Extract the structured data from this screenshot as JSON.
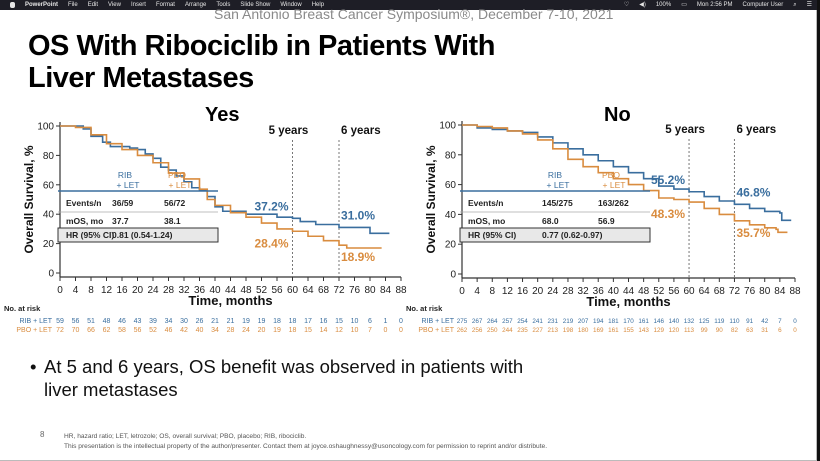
{
  "menubar": {
    "app": "PowerPoint",
    "menus": [
      "File",
      "Edit",
      "View",
      "Insert",
      "Format",
      "Arrange",
      "Tools",
      "Slide Show",
      "Window",
      "Help"
    ],
    "status": [
      "100%",
      "Mon 2:56 PM",
      "Computer User"
    ],
    "icons": [
      "apple-icon",
      "wifi-icon",
      "volume-icon",
      "battery-icon",
      "search-icon",
      "list-icon"
    ]
  },
  "slide": {
    "conference": "San Antonio Breast Cancer Symposium®, December 7-10, 2021",
    "title_line1": "OS With Ribociclib in Patients With",
    "title_line2": "Liver Metastases",
    "bullet_line1": "At 5 and 6 years, OS benefit was observed in patients with",
    "bullet_line2": "liver metastases",
    "slide_number": "8",
    "footnote1": "HR, hazard ratio; LET, letrozole; OS, overall survival; PBO, placebo; RIB, ribociclib.",
    "footnote2": "This presentation is the intellectual property of the author/presenter. Contact them at joyce.oshaughnessy@usoncology.com for permission to reprint and/or distribute."
  },
  "colors": {
    "rib": "#3a6e9e",
    "pbo": "#d98c3f",
    "axis": "#333333"
  },
  "chart_data": [
    {
      "type": "line",
      "panel": "Yes",
      "title": "Yes",
      "xlabel": "Time, months",
      "ylabel": "Overall Survival, %",
      "xlim": [
        0,
        88
      ],
      "ylim": [
        0,
        100
      ],
      "xticks": [
        0,
        4,
        8,
        12,
        16,
        20,
        24,
        28,
        32,
        36,
        40,
        44,
        48,
        52,
        56,
        60,
        64,
        68,
        72,
        76,
        80,
        84,
        88
      ],
      "yticks": [
        0,
        20,
        40,
        60,
        80,
        100
      ],
      "reference_lines": [
        {
          "x": 60,
          "label": "5 years"
        },
        {
          "x": 72,
          "label": "6 years"
        }
      ],
      "series": [
        {
          "name": "RIB + LET",
          "key": "rib",
          "points": [
            [
              0,
              100
            ],
            [
              6,
              98
            ],
            [
              8,
              93
            ],
            [
              11,
              89
            ],
            [
              13,
              86
            ],
            [
              18,
              85
            ],
            [
              20,
              84
            ],
            [
              22,
              81
            ],
            [
              24,
              78
            ],
            [
              26,
              72
            ],
            [
              28,
              70
            ],
            [
              30,
              66
            ],
            [
              32,
              62
            ],
            [
              34,
              58
            ],
            [
              36,
              56
            ],
            [
              38,
              52
            ],
            [
              40,
              45
            ],
            [
              42,
              42
            ],
            [
              48,
              40
            ],
            [
              56,
              38
            ],
            [
              60,
              37.2
            ],
            [
              62,
              35
            ],
            [
              66,
              33
            ],
            [
              72,
              31
            ],
            [
              78,
              31
            ],
            [
              80,
              27
            ],
            [
              85,
              27
            ]
          ]
        },
        {
          "name": "PBO + LET",
          "key": "pbo",
          "points": [
            [
              0,
              100
            ],
            [
              4,
              99
            ],
            [
              8,
              94
            ],
            [
              12,
              88
            ],
            [
              16,
              84
            ],
            [
              20,
              80
            ],
            [
              24,
              75
            ],
            [
              28,
              68
            ],
            [
              32,
              64
            ],
            [
              36,
              57
            ],
            [
              38,
              50
            ],
            [
              40,
              46
            ],
            [
              44,
              41
            ],
            [
              48,
              38
            ],
            [
              52,
              34
            ],
            [
              56,
              30
            ],
            [
              60,
              28.4
            ],
            [
              64,
              25
            ],
            [
              68,
              22
            ],
            [
              72,
              18.9
            ],
            [
              74,
              17
            ],
            [
              83,
              17
            ]
          ]
        }
      ],
      "annotations": [
        {
          "text": "37.2%",
          "series": "rib",
          "x": 60,
          "y": 37.2
        },
        {
          "text": "31.0%",
          "series": "rib",
          "x": 72,
          "y": 31.0
        },
        {
          "text": "28.4%",
          "series": "pbo",
          "x": 60,
          "y": 28.4
        },
        {
          "text": "18.9%",
          "series": "pbo",
          "x": 72,
          "y": 18.9
        }
      ],
      "inset_table": {
        "headers": [
          "",
          "RIB\n+ LET",
          "PBO\n+ LET"
        ],
        "rows": [
          [
            "Events/n",
            "36/59",
            "56/72"
          ],
          [
            "mOS, mo",
            "37.7",
            "38.1"
          ]
        ],
        "hr_label": "HR (95% CI)",
        "hr_value": "0.81 (0.54-1.24)"
      },
      "at_risk": {
        "label": "No. at risk",
        "rib": [
          "59",
          "56",
          "51",
          "48",
          "46",
          "43",
          "39",
          "34",
          "30",
          "26",
          "21",
          "21",
          "19",
          "19",
          "18",
          "18",
          "17",
          "16",
          "15",
          "10",
          "6",
          "1",
          "0"
        ],
        "pbo": [
          "72",
          "70",
          "66",
          "62",
          "58",
          "56",
          "52",
          "46",
          "42",
          "40",
          "34",
          "28",
          "24",
          "20",
          "19",
          "18",
          "15",
          "14",
          "12",
          "10",
          "7",
          "0",
          "0"
        ]
      }
    },
    {
      "type": "line",
      "panel": "No",
      "title": "No",
      "xlabel": "Time, months",
      "ylabel": "Overall Survival, %",
      "xlim": [
        0,
        88
      ],
      "ylim": [
        0,
        100
      ],
      "xticks": [
        0,
        4,
        8,
        12,
        16,
        20,
        24,
        28,
        32,
        36,
        40,
        44,
        48,
        52,
        56,
        60,
        64,
        68,
        72,
        76,
        80,
        84,
        88
      ],
      "yticks": [
        0,
        20,
        40,
        60,
        80,
        100
      ],
      "reference_lines": [
        {
          "x": 60,
          "label": "5 years"
        },
        {
          "x": 72,
          "label": "6 years"
        }
      ],
      "series": [
        {
          "name": "RIB + LET",
          "key": "rib",
          "points": [
            [
              0,
              100
            ],
            [
              4,
              98
            ],
            [
              8,
              97
            ],
            [
              12,
              96
            ],
            [
              16,
              95
            ],
            [
              20,
              92
            ],
            [
              24,
              88
            ],
            [
              28,
              84
            ],
            [
              32,
              80
            ],
            [
              36,
              76
            ],
            [
              40,
              72
            ],
            [
              44,
              68
            ],
            [
              48,
              64
            ],
            [
              52,
              59
            ],
            [
              56,
              57
            ],
            [
              60,
              55.2
            ],
            [
              64,
              52
            ],
            [
              68,
              49
            ],
            [
              72,
              46.8
            ],
            [
              76,
              44
            ],
            [
              80,
              42
            ],
            [
              84,
              41
            ],
            [
              84.5,
              36
            ],
            [
              87,
              36
            ]
          ]
        },
        {
          "name": "PBO + LET",
          "key": "pbo",
          "points": [
            [
              0,
              100
            ],
            [
              4,
              99
            ],
            [
              8,
              98
            ],
            [
              12,
              96
            ],
            [
              16,
              94
            ],
            [
              20,
              90
            ],
            [
              24,
              84
            ],
            [
              28,
              77
            ],
            [
              32,
              72
            ],
            [
              36,
              68
            ],
            [
              40,
              64
            ],
            [
              44,
              60
            ],
            [
              48,
              56
            ],
            [
              52,
              51
            ],
            [
              56,
              50
            ],
            [
              60,
              48.3
            ],
            [
              64,
              44
            ],
            [
              68,
              40
            ],
            [
              72,
              35.7
            ],
            [
              76,
              33
            ],
            [
              80,
              31
            ],
            [
              83,
              30
            ],
            [
              83.5,
              28
            ],
            [
              86,
              28
            ]
          ]
        }
      ],
      "annotations": [
        {
          "text": "55.2%",
          "series": "rib",
          "x": 60,
          "y": 55.2
        },
        {
          "text": "46.8%",
          "series": "rib",
          "x": 72,
          "y": 46.8
        },
        {
          "text": "48.3%",
          "series": "pbo",
          "x": 60,
          "y": 48.3
        },
        {
          "text": "35.7%",
          "series": "pbo",
          "x": 72,
          "y": 35.7
        }
      ],
      "inset_table": {
        "headers": [
          "",
          "RIB\n+ LET",
          "PBO\n+ LET"
        ],
        "rows": [
          [
            "Events/n",
            "145/275",
            "163/262"
          ],
          [
            "mOS, mo",
            "68.0",
            "56.9"
          ]
        ],
        "hr_label": "HR (95% CI)",
        "hr_value": "0.77 (0.62-0.97)"
      },
      "at_risk": {
        "label": "No. at risk",
        "rib": [
          "275",
          "267",
          "264",
          "257",
          "254",
          "241",
          "231",
          "219",
          "207",
          "194",
          "181",
          "170",
          "161",
          "146",
          "140",
          "132",
          "125",
          "119",
          "110",
          "91",
          "42",
          "7",
          "0"
        ],
        "pbo": [
          "262",
          "256",
          "250",
          "244",
          "235",
          "227",
          "213",
          "198",
          "180",
          "169",
          "161",
          "155",
          "143",
          "129",
          "120",
          "113",
          "99",
          "90",
          "82",
          "63",
          "31",
          "6",
          "0"
        ]
      }
    }
  ]
}
